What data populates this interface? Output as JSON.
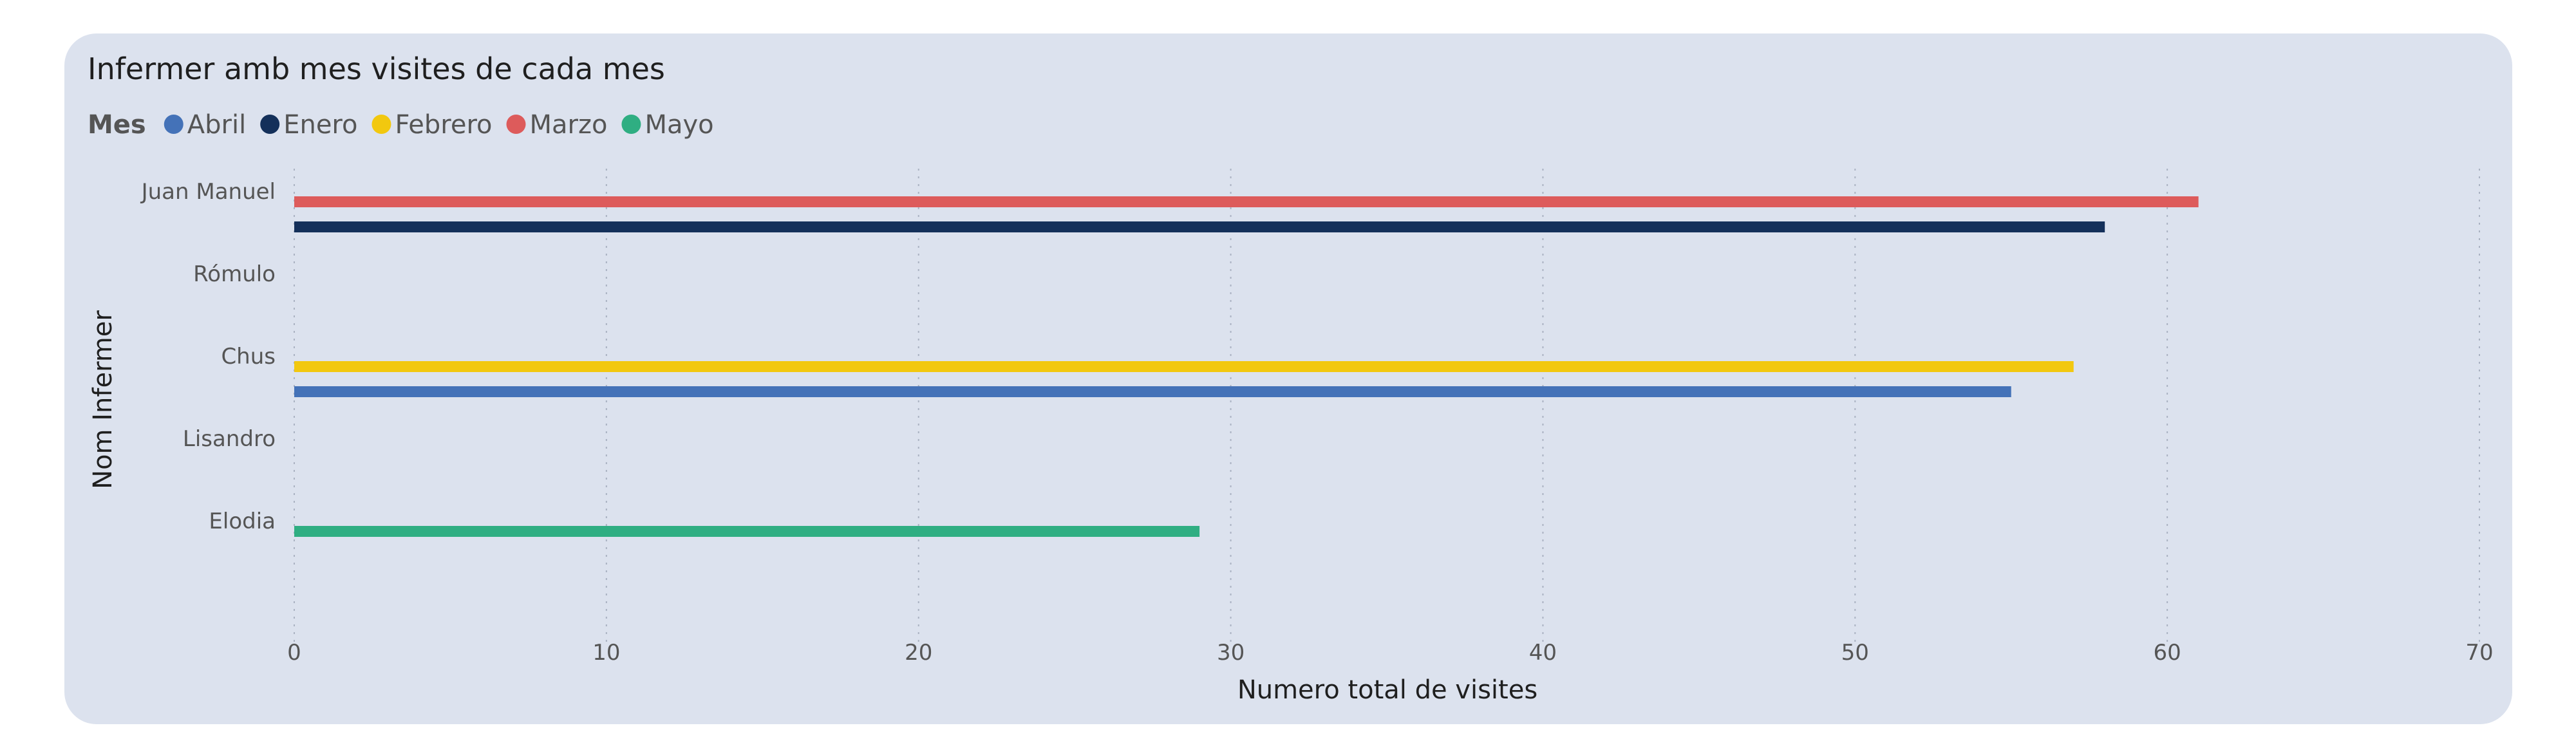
{
  "chart_data": {
    "type": "bar",
    "orientation": "horizontal",
    "title": "Infermer amb mes visites de cada mes",
    "xlabel": "Numero total de visites",
    "ylabel": "Nom Infermer",
    "legend_title": "Mes",
    "legend_position": "top-left",
    "xlim": [
      0,
      70
    ],
    "x_ticks": [
      0,
      10,
      20,
      30,
      40,
      50,
      60,
      70
    ],
    "grid": "vertical dotted",
    "categories": [
      "Juan Manuel",
      "Rómulo",
      "Chus",
      "Lisandro",
      "Elodia"
    ],
    "series": [
      {
        "name": "Abril",
        "color": "#4472b8",
        "values": [
          null,
          null,
          null,
          55,
          null
        ]
      },
      {
        "name": "Enero",
        "color": "#14305a",
        "values": [
          null,
          58,
          null,
          null,
          null
        ]
      },
      {
        "name": "Febrero",
        "color": "#f2c80f",
        "values": [
          null,
          null,
          57,
          null,
          null
        ]
      },
      {
        "name": "Marzo",
        "color": "#dd5b5b",
        "values": [
          61,
          null,
          null,
          null,
          null
        ]
      },
      {
        "name": "Mayo",
        "color": "#2fae82",
        "values": [
          null,
          null,
          null,
          null,
          29
        ]
      }
    ]
  }
}
